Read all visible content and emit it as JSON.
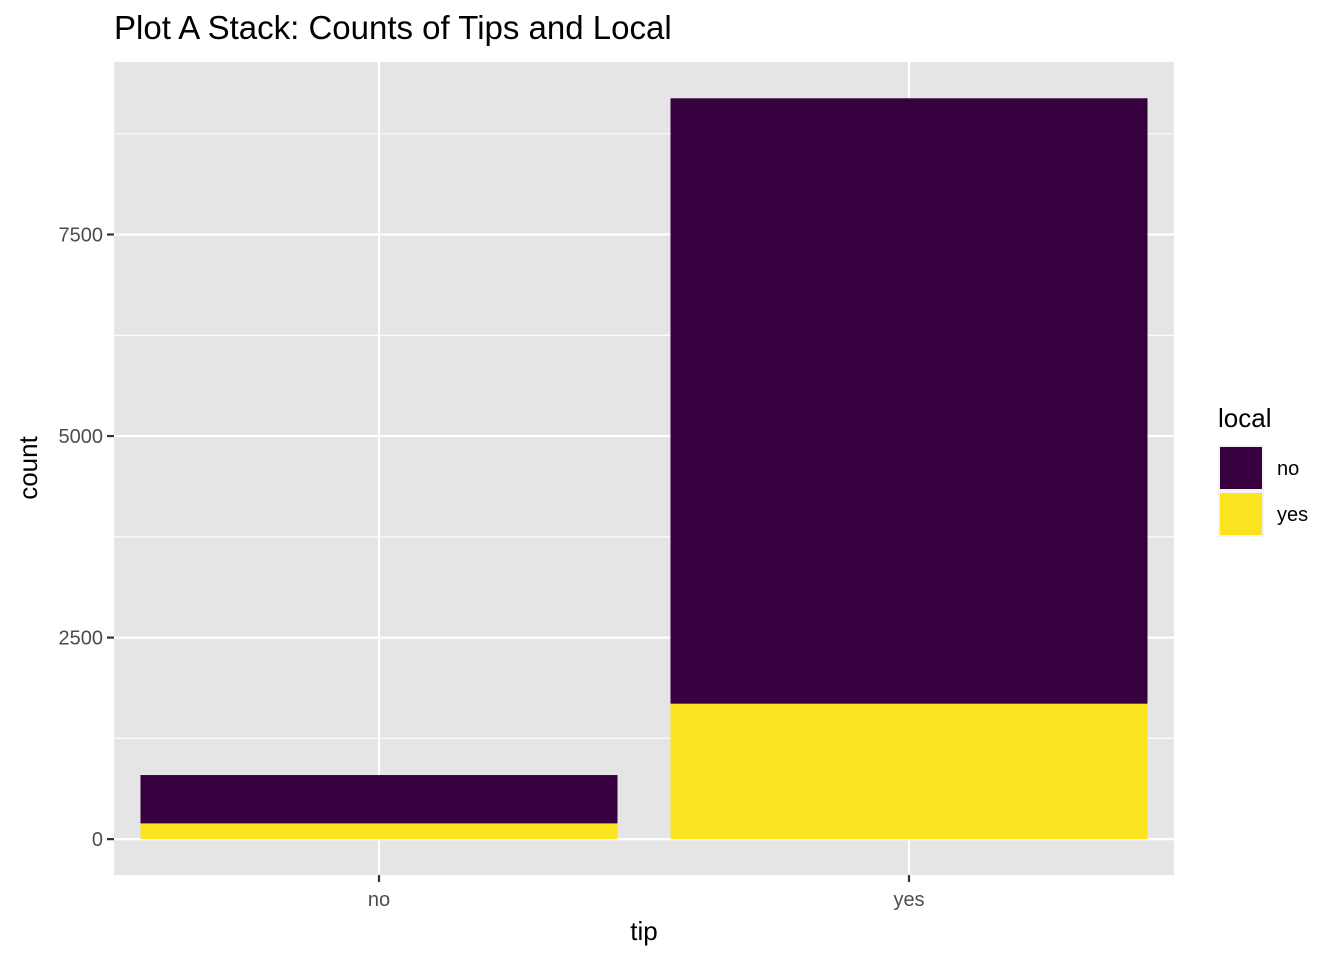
{
  "chart_data": {
    "type": "bar",
    "stacked": true,
    "title": "Plot A Stack: Counts of Tips and Local",
    "xlabel": "tip",
    "ylabel": "count",
    "categories": [
      "no",
      "yes"
    ],
    "series": [
      {
        "name": "no",
        "values": [
          600,
          7510
        ],
        "color": "#370140"
      },
      {
        "name": "yes",
        "values": [
          195,
          1680
        ],
        "color": "#fbe31f"
      }
    ],
    "ylim": [
      -445,
      9640
    ],
    "yticks": [
      0,
      2500,
      5000,
      7500
    ],
    "ytick_labels": [
      "0",
      "2500",
      "5000",
      "7500"
    ],
    "grid": true,
    "legend": {
      "title": "local",
      "position": "right",
      "items": [
        "no",
        "yes"
      ]
    },
    "panel_background": "#e5e5e5",
    "grid_color": "#ffffff"
  }
}
